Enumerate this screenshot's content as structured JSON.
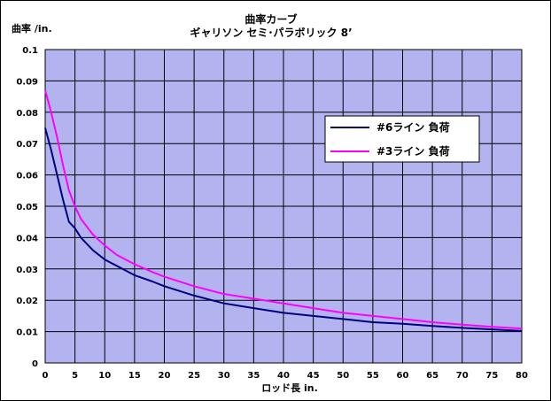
{
  "chart_data": {
    "type": "line",
    "title": "曲率カーブ",
    "subtitle": "ギャリソン セミ･パラボリック 8’",
    "ylabel": "曲率 /in.",
    "xlabel": "ロッド長 in.",
    "xlim": [
      0,
      80
    ],
    "ylim": [
      0,
      0.1
    ],
    "x_ticks": [
      "0",
      "5",
      "10",
      "15",
      "20",
      "25",
      "30",
      "35",
      "40",
      "45",
      "50",
      "55",
      "60",
      "65",
      "70",
      "75",
      "80"
    ],
    "y_ticks": [
      "0",
      "0.01",
      "0.02",
      "0.03",
      "0.04",
      "0.05",
      "0.06",
      "0.07",
      "0.08",
      "0.09",
      "0.1"
    ],
    "grid": true,
    "plot_background": "#b3b3f0",
    "legend_position": "top-right",
    "series": [
      {
        "name": "#6ライン 負荷",
        "color": "#000080",
        "x": [
          0,
          1,
          2,
          3,
          4,
          5,
          6,
          8,
          10,
          12,
          15,
          18,
          20,
          25,
          30,
          35,
          40,
          45,
          50,
          55,
          60,
          65,
          70,
          75,
          80
        ],
        "y": [
          0.075,
          0.068,
          0.06,
          0.052,
          0.045,
          0.043,
          0.04,
          0.036,
          0.033,
          0.031,
          0.028,
          0.026,
          0.0245,
          0.0215,
          0.019,
          0.0175,
          0.016,
          0.015,
          0.014,
          0.013,
          0.0125,
          0.0118,
          0.0112,
          0.0107,
          0.0102
        ]
      },
      {
        "name": "#3ライン 負荷",
        "color": "#ff00ff",
        "x": [
          0,
          1,
          2,
          3,
          4,
          5,
          6,
          8,
          10,
          12,
          15,
          18,
          20,
          25,
          30,
          35,
          40,
          45,
          50,
          55,
          60,
          65,
          70,
          75,
          80
        ],
        "y": [
          0.087,
          0.08,
          0.072,
          0.063,
          0.055,
          0.05,
          0.046,
          0.041,
          0.0375,
          0.0345,
          0.0315,
          0.029,
          0.0275,
          0.0245,
          0.022,
          0.0205,
          0.019,
          0.0175,
          0.016,
          0.015,
          0.014,
          0.013,
          0.0122,
          0.0115,
          0.011
        ]
      }
    ]
  }
}
